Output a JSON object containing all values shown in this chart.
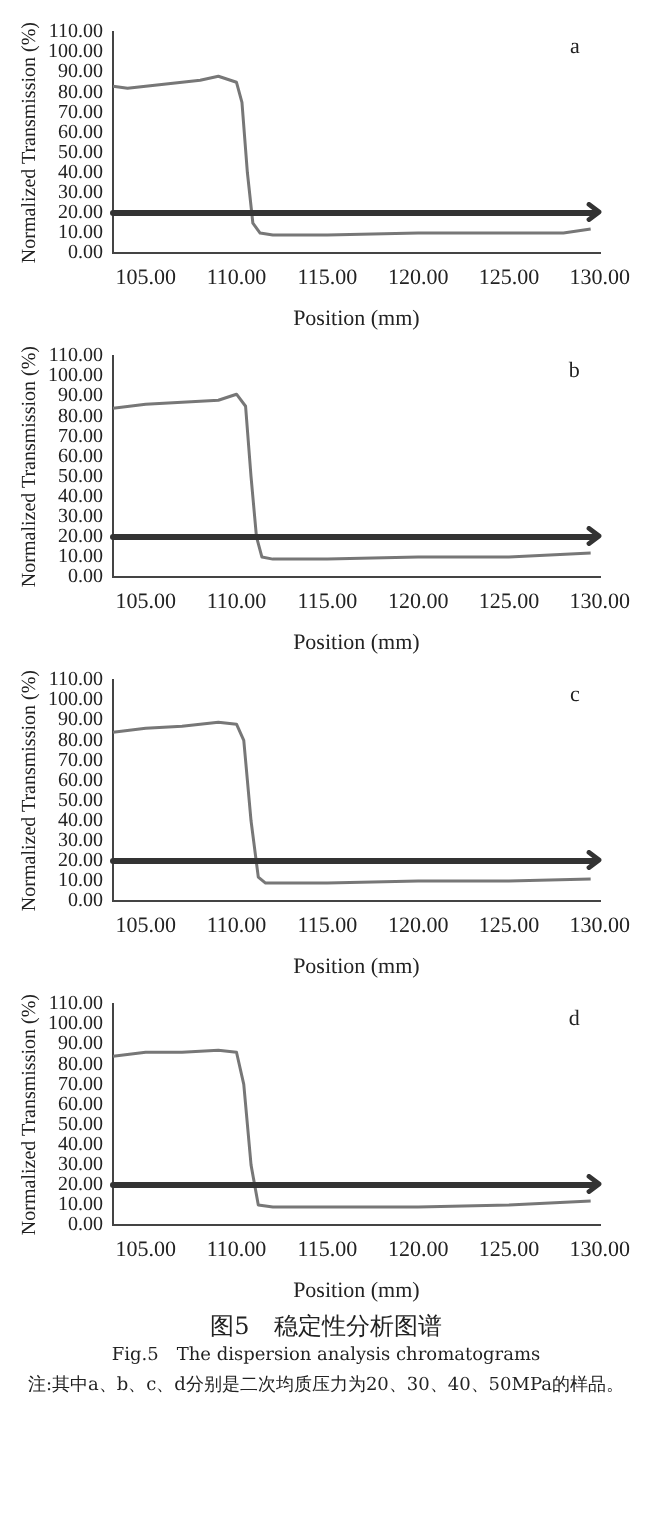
{
  "chart_data": [
    {
      "type": "line",
      "title": "a",
      "xlabel": "Position (mm)",
      "ylabel": "Normalized Transmission (%)",
      "grid": false,
      "legend": false,
      "marker": "none",
      "xlim": [
        103.2,
        130
      ],
      "xticks": [
        {
          "value": 105,
          "label": "105.00"
        },
        {
          "value": 110,
          "label": "110.00"
        },
        {
          "value": 115,
          "label": "115.00"
        },
        {
          "value": 120,
          "label": "120.00"
        },
        {
          "value": 125,
          "label": "125.00"
        },
        {
          "value": 130,
          "label": "130.00"
        }
      ],
      "ylim": [
        0,
        110
      ],
      "yticks": [
        {
          "value": 0,
          "label": "0.00"
        },
        {
          "value": 10,
          "label": "10.00"
        },
        {
          "value": 20,
          "label": "20.00"
        },
        {
          "value": 30,
          "label": "30.00"
        },
        {
          "value": 40,
          "label": "40.00"
        },
        {
          "value": 50,
          "label": "50.00"
        },
        {
          "value": 60,
          "label": "60.00"
        },
        {
          "value": 70,
          "label": "70.00"
        },
        {
          "value": 80,
          "label": "80.00"
        },
        {
          "value": 90,
          "label": "90.00"
        },
        {
          "value": 100,
          "label": "100.00"
        },
        {
          "value": 110,
          "label": "110.00"
        }
      ],
      "ref_lines": [
        {
          "axis": "y",
          "value": 20,
          "color": "#333333"
        }
      ],
      "series": [
        {
          "color": "#777777",
          "x": [
            103.2,
            104,
            105,
            106,
            107,
            108,
            109,
            110,
            110.3,
            110.6,
            110.9,
            111.3,
            112,
            115,
            120,
            125,
            128,
            129.5
          ],
          "values": [
            83,
            82,
            83,
            84,
            85,
            86,
            88,
            85,
            75,
            40,
            15,
            10,
            9,
            9,
            10,
            10,
            10,
            12
          ]
        }
      ]
    },
    {
      "type": "line",
      "title": "b",
      "xlabel": "Position (mm)",
      "ylabel": "Normalized Transmission (%)",
      "grid": false,
      "legend": false,
      "marker": "none",
      "xlim": [
        103.2,
        130
      ],
      "xticks": [
        {
          "value": 105,
          "label": "105.00"
        },
        {
          "value": 110,
          "label": "110.00"
        },
        {
          "value": 115,
          "label": "115.00"
        },
        {
          "value": 120,
          "label": "120.00"
        },
        {
          "value": 125,
          "label": "125.00"
        },
        {
          "value": 130,
          "label": "130.00"
        }
      ],
      "ylim": [
        0,
        110
      ],
      "yticks": [
        {
          "value": 0,
          "label": "0.00"
        },
        {
          "value": 10,
          "label": "10.00"
        },
        {
          "value": 20,
          "label": "20.00"
        },
        {
          "value": 30,
          "label": "30.00"
        },
        {
          "value": 40,
          "label": "40.00"
        },
        {
          "value": 50,
          "label": "50.00"
        },
        {
          "value": 60,
          "label": "60.00"
        },
        {
          "value": 70,
          "label": "70.00"
        },
        {
          "value": 80,
          "label": "80.00"
        },
        {
          "value": 90,
          "label": "90.00"
        },
        {
          "value": 100,
          "label": "100.00"
        },
        {
          "value": 110,
          "label": "110.00"
        }
      ],
      "ref_lines": [
        {
          "axis": "y",
          "value": 20,
          "color": "#333333"
        }
      ],
      "series": [
        {
          "color": "#777777",
          "x": [
            103.2,
            105,
            107,
            109,
            110,
            110.5,
            110.8,
            111.1,
            111.4,
            112,
            115,
            120,
            125,
            129.5
          ],
          "values": [
            84,
            86,
            87,
            88,
            91,
            85,
            50,
            20,
            10,
            9,
            9,
            10,
            10,
            12
          ]
        }
      ]
    },
    {
      "type": "line",
      "title": "c",
      "xlabel": "Position (mm)",
      "ylabel": "Normalized Transmission (%)",
      "grid": false,
      "legend": false,
      "marker": "none",
      "xlim": [
        103.2,
        130
      ],
      "xticks": [
        {
          "value": 105,
          "label": "105.00"
        },
        {
          "value": 110,
          "label": "110.00"
        },
        {
          "value": 115,
          "label": "115.00"
        },
        {
          "value": 120,
          "label": "120.00"
        },
        {
          "value": 125,
          "label": "125.00"
        },
        {
          "value": 130,
          "label": "130.00"
        }
      ],
      "ylim": [
        0,
        110
      ],
      "yticks": [
        {
          "value": 0,
          "label": "0.00"
        },
        {
          "value": 10,
          "label": "10.00"
        },
        {
          "value": 20,
          "label": "20.00"
        },
        {
          "value": 30,
          "label": "30.00"
        },
        {
          "value": 40,
          "label": "40.00"
        },
        {
          "value": 50,
          "label": "50.00"
        },
        {
          "value": 60,
          "label": "60.00"
        },
        {
          "value": 70,
          "label": "70.00"
        },
        {
          "value": 80,
          "label": "80.00"
        },
        {
          "value": 90,
          "label": "90.00"
        },
        {
          "value": 100,
          "label": "100.00"
        },
        {
          "value": 110,
          "label": "110.00"
        }
      ],
      "ref_lines": [
        {
          "axis": "y",
          "value": 20,
          "color": "#333333"
        }
      ],
      "series": [
        {
          "color": "#777777",
          "x": [
            103.2,
            105,
            107,
            109,
            110,
            110.4,
            110.8,
            111.2,
            111.6,
            115,
            120,
            125,
            129.5
          ],
          "values": [
            84,
            86,
            87,
            89,
            88,
            80,
            40,
            12,
            9,
            9,
            10,
            10,
            11
          ]
        }
      ]
    },
    {
      "type": "line",
      "title": "d",
      "xlabel": "Position (mm)",
      "ylabel": "Normalized Transmission (%)",
      "grid": false,
      "legend": false,
      "marker": "none",
      "xlim": [
        103.2,
        130
      ],
      "xticks": [
        {
          "value": 105,
          "label": "105.00"
        },
        {
          "value": 110,
          "label": "110.00"
        },
        {
          "value": 115,
          "label": "115.00"
        },
        {
          "value": 120,
          "label": "120.00"
        },
        {
          "value": 125,
          "label": "125.00"
        },
        {
          "value": 130,
          "label": "130.00"
        }
      ],
      "ylim": [
        0,
        110
      ],
      "yticks": [
        {
          "value": 0,
          "label": "0.00"
        },
        {
          "value": 10,
          "label": "10.00"
        },
        {
          "value": 20,
          "label": "20.00"
        },
        {
          "value": 30,
          "label": "30.00"
        },
        {
          "value": 40,
          "label": "40.00"
        },
        {
          "value": 50,
          "label": "50.00"
        },
        {
          "value": 60,
          "label": "60.00"
        },
        {
          "value": 70,
          "label": "70.00"
        },
        {
          "value": 80,
          "label": "80.00"
        },
        {
          "value": 90,
          "label": "90.00"
        },
        {
          "value": 100,
          "label": "100.00"
        },
        {
          "value": 110,
          "label": "110.00"
        }
      ],
      "ref_lines": [
        {
          "axis": "y",
          "value": 20,
          "color": "#333333"
        }
      ],
      "series": [
        {
          "color": "#777777",
          "x": [
            103.2,
            105,
            107,
            109,
            110,
            110.4,
            110.8,
            111.2,
            112,
            115,
            120,
            125,
            129.5
          ],
          "values": [
            84,
            86,
            86,
            87,
            86,
            70,
            30,
            10,
            9,
            9,
            9,
            10,
            12
          ]
        }
      ],
      "annotations": [
        "图5　稳定性分析图谱",
        "Fig.5　The dispersion analysis chromatograms",
        "注:其中a、b、c、d分别是二次均质压力为20、30、40、50MPa的样品。"
      ]
    }
  ]
}
